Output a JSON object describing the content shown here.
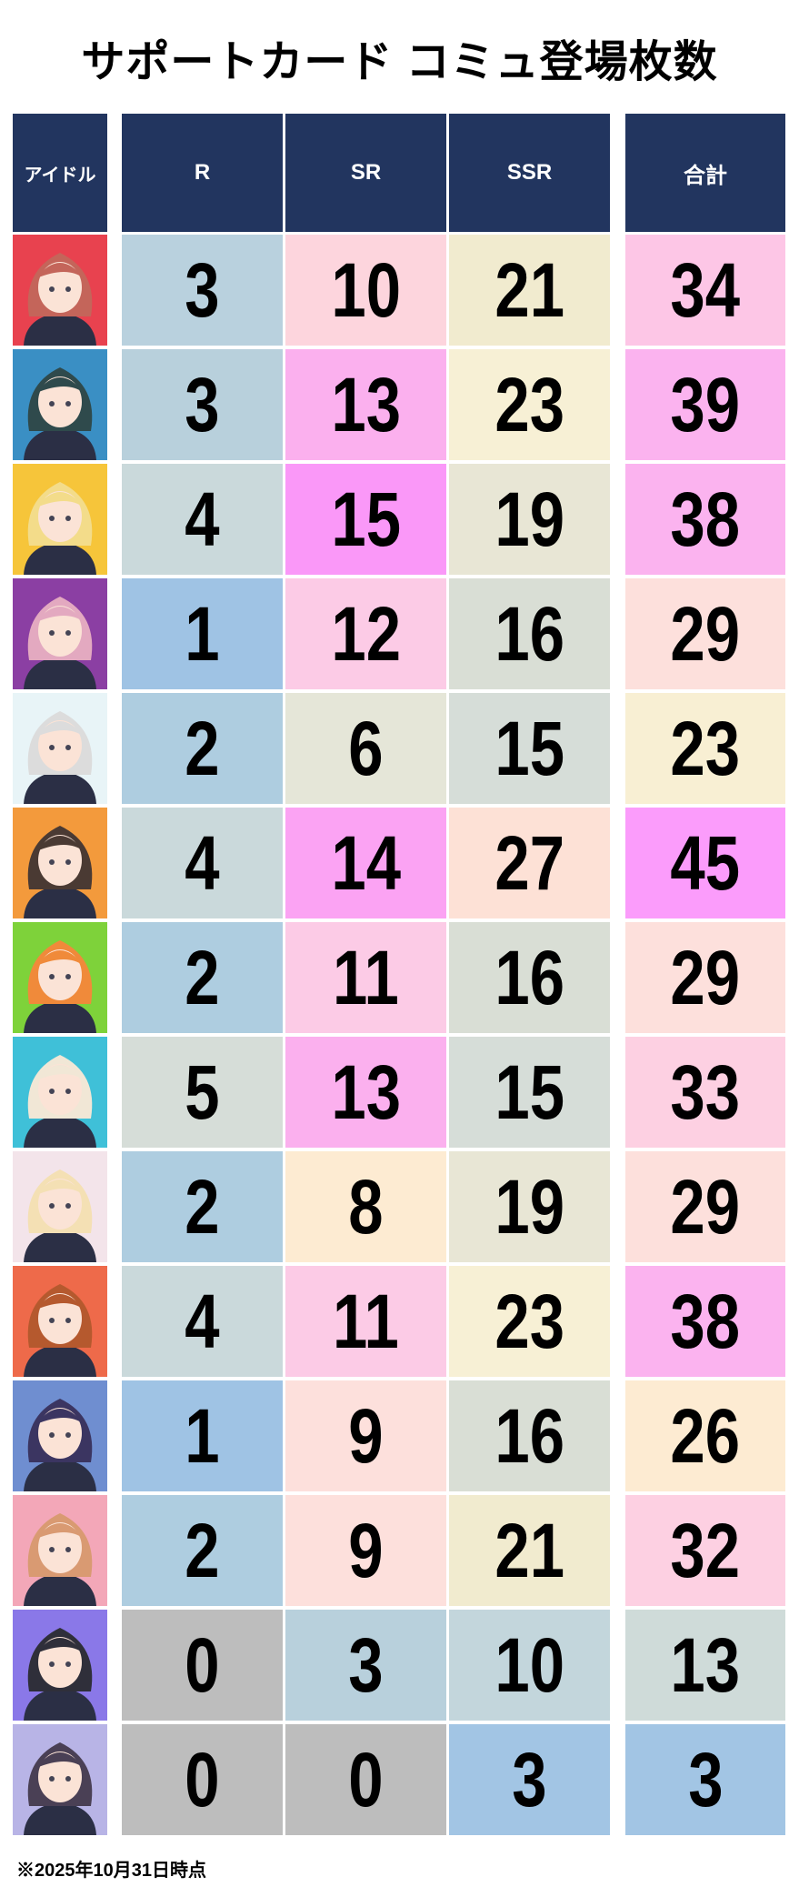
{
  "title": "サポートカード コミュ登場枚数",
  "headers": {
    "idol": "アイドル",
    "r": "R",
    "sr": "SR",
    "ssr": "SSR",
    "total": "合計"
  },
  "rows": [
    {
      "avatar_bg": "#e8424f",
      "hair": "#c4655a",
      "r": "3",
      "sr": "10",
      "ssr": "21",
      "total": "34",
      "colors": [
        "#b9d1de",
        "#fdd5dd",
        "#f1ebcf",
        "#fdc6e6"
      ]
    },
    {
      "avatar_bg": "#3a8fc4",
      "hair": "#2f4a4c",
      "r": "3",
      "sr": "13",
      "ssr": "23",
      "total": "39",
      "colors": [
        "#b8d0dc",
        "#fbb0ee",
        "#f7f0d5",
        "#fbb3ef"
      ]
    },
    {
      "avatar_bg": "#f6c53a",
      "hair": "#f3dc8a",
      "r": "4",
      "sr": "15",
      "ssr": "19",
      "total": "38",
      "colors": [
        "#cad9db",
        "#fa98f8",
        "#e8e6d5",
        "#fbb3ef"
      ]
    },
    {
      "avatar_bg": "#8b3fa3",
      "hair": "#e3a9c0",
      "r": "1",
      "sr": "12",
      "ssr": "16",
      "total": "29",
      "colors": [
        "#9fc3e4",
        "#fccbe6",
        "#d9ded5",
        "#fde0dc"
      ]
    },
    {
      "avatar_bg": "#e8f4f7",
      "hair": "#dcdcdc",
      "r": "2",
      "sr": "6",
      "ssr": "15",
      "total": "23",
      "colors": [
        "#aecde0",
        "#e5e6d8",
        "#d6ddd8",
        "#f8efd3"
      ]
    },
    {
      "avatar_bg": "#f39a3c",
      "hair": "#4a3a33",
      "r": "4",
      "sr": "14",
      "ssr": "27",
      "total": "45",
      "colors": [
        "#cad9db",
        "#fba3f3",
        "#fde1d6",
        "#fb9cfb"
      ]
    },
    {
      "avatar_bg": "#7ed23a",
      "hair": "#f08a3a",
      "r": "2",
      "sr": "11",
      "ssr": "16",
      "total": "29",
      "colors": [
        "#aecde0",
        "#fccbe6",
        "#d9ded5",
        "#fde0dc"
      ]
    },
    {
      "avatar_bg": "#3fc0d8",
      "hair": "#f1e7d6",
      "r": "5",
      "sr": "13",
      "ssr": "15",
      "total": "33",
      "colors": [
        "#d6ddd8",
        "#fbb0ee",
        "#d6ddd8",
        "#fdd0e2"
      ]
    },
    {
      "avatar_bg": "#f3e4ea",
      "hair": "#f4e0b4",
      "r": "2",
      "sr": "8",
      "ssr": "19",
      "total": "29",
      "colors": [
        "#aecde0",
        "#fdebd2",
        "#e8e6d5",
        "#fde0dc"
      ]
    },
    {
      "avatar_bg": "#ee6a4a",
      "hair": "#b5592e",
      "r": "4",
      "sr": "11",
      "ssr": "23",
      "total": "38",
      "colors": [
        "#cad9db",
        "#fccbe6",
        "#f7f0d5",
        "#fbb3ef"
      ]
    },
    {
      "avatar_bg": "#6f8ed0",
      "hair": "#3b3561",
      "r": "1",
      "sr": "9",
      "ssr": "16",
      "total": "26",
      "colors": [
        "#9fc3e4",
        "#fde0dc",
        "#d9ded5",
        "#fdebd2"
      ]
    },
    {
      "avatar_bg": "#f3a7b8",
      "hair": "#d99a72",
      "r": "2",
      "sr": "9",
      "ssr": "21",
      "total": "32",
      "colors": [
        "#aecde0",
        "#fde0dc",
        "#f1ebcf",
        "#fdd0e2"
      ]
    },
    {
      "avatar_bg": "#8a78e8",
      "hair": "#2f2f3a",
      "r": "0",
      "sr": "3",
      "ssr": "10",
      "total": "13",
      "colors": [
        "#bdbdbd",
        "#b8d0dc",
        "#c3d6dc",
        "#cfdbd9"
      ]
    },
    {
      "avatar_bg": "#b8b4e6",
      "hair": "#4a4055",
      "r": "0",
      "sr": "0",
      "ssr": "3",
      "total": "3",
      "colors": [
        "#bdbdbd",
        "#bdbdbd",
        "#a2c5e4",
        "#a2c5e4"
      ]
    }
  ],
  "footnote": "※2025年10月31日時点"
}
